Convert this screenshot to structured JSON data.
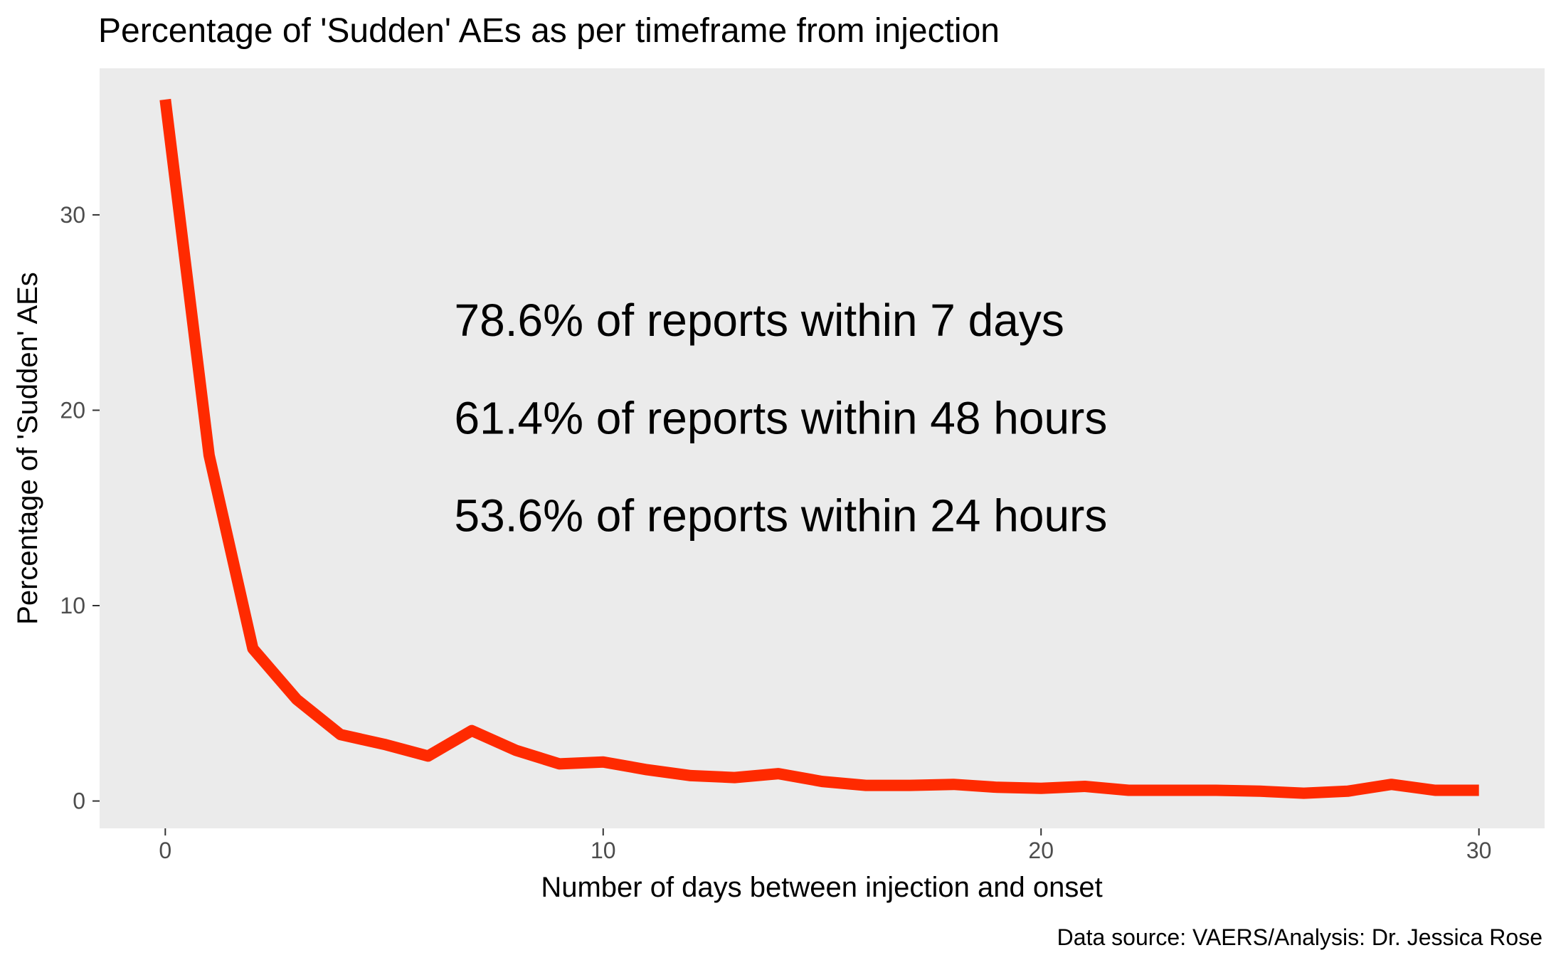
{
  "chart_data": {
    "type": "line",
    "title": "Percentage of 'Sudden' AEs as per timeframe from injection",
    "xlabel": "Number of days between injection and onset",
    "ylabel": "Percentage of 'Sudden' AEs",
    "caption": "Data source: VAERS/Analysis: Dr. Jessica Rose",
    "xlim": [
      -1.5,
      31.5
    ],
    "ylim": [
      -1.4,
      37.5
    ],
    "x_ticks": [
      0,
      10,
      20,
      30
    ],
    "x_tick_labels": [
      "0",
      "10",
      "20",
      "30"
    ],
    "y_ticks": [
      0,
      10,
      20,
      30
    ],
    "y_tick_labels": [
      "0",
      "10",
      "20",
      "30"
    ],
    "grid": false,
    "background": "#EBEBEB",
    "line_color": "#FF2A00",
    "x": [
      0,
      1,
      2,
      3,
      4,
      5,
      6,
      7,
      8,
      9,
      10,
      11,
      12,
      13,
      14,
      15,
      16,
      17,
      18,
      19,
      20,
      21,
      22,
      23,
      24,
      25,
      26,
      27,
      28,
      29,
      30
    ],
    "series": [
      {
        "values": [
          35.9,
          17.7,
          7.8,
          5.2,
          3.4,
          2.9,
          2.3,
          3.6,
          2.6,
          1.9,
          2.0,
          1.6,
          1.3,
          1.2,
          1.4,
          1.0,
          0.8,
          0.8,
          0.85,
          0.7,
          0.65,
          0.75,
          0.55,
          0.55,
          0.55,
          0.5,
          0.4,
          0.5,
          0.85,
          0.55,
          0.55
        ]
      }
    ],
    "annotations": [
      {
        "text": "78.6% of reports within 7 days",
        "x": 6.6,
        "y": 24.6
      },
      {
        "text": "61.4% of reports within 48 hours",
        "x": 6.6,
        "y": 19.6
      },
      {
        "text": "53.6% of reports within 24 hours",
        "x": 6.6,
        "y": 14.6
      }
    ]
  }
}
